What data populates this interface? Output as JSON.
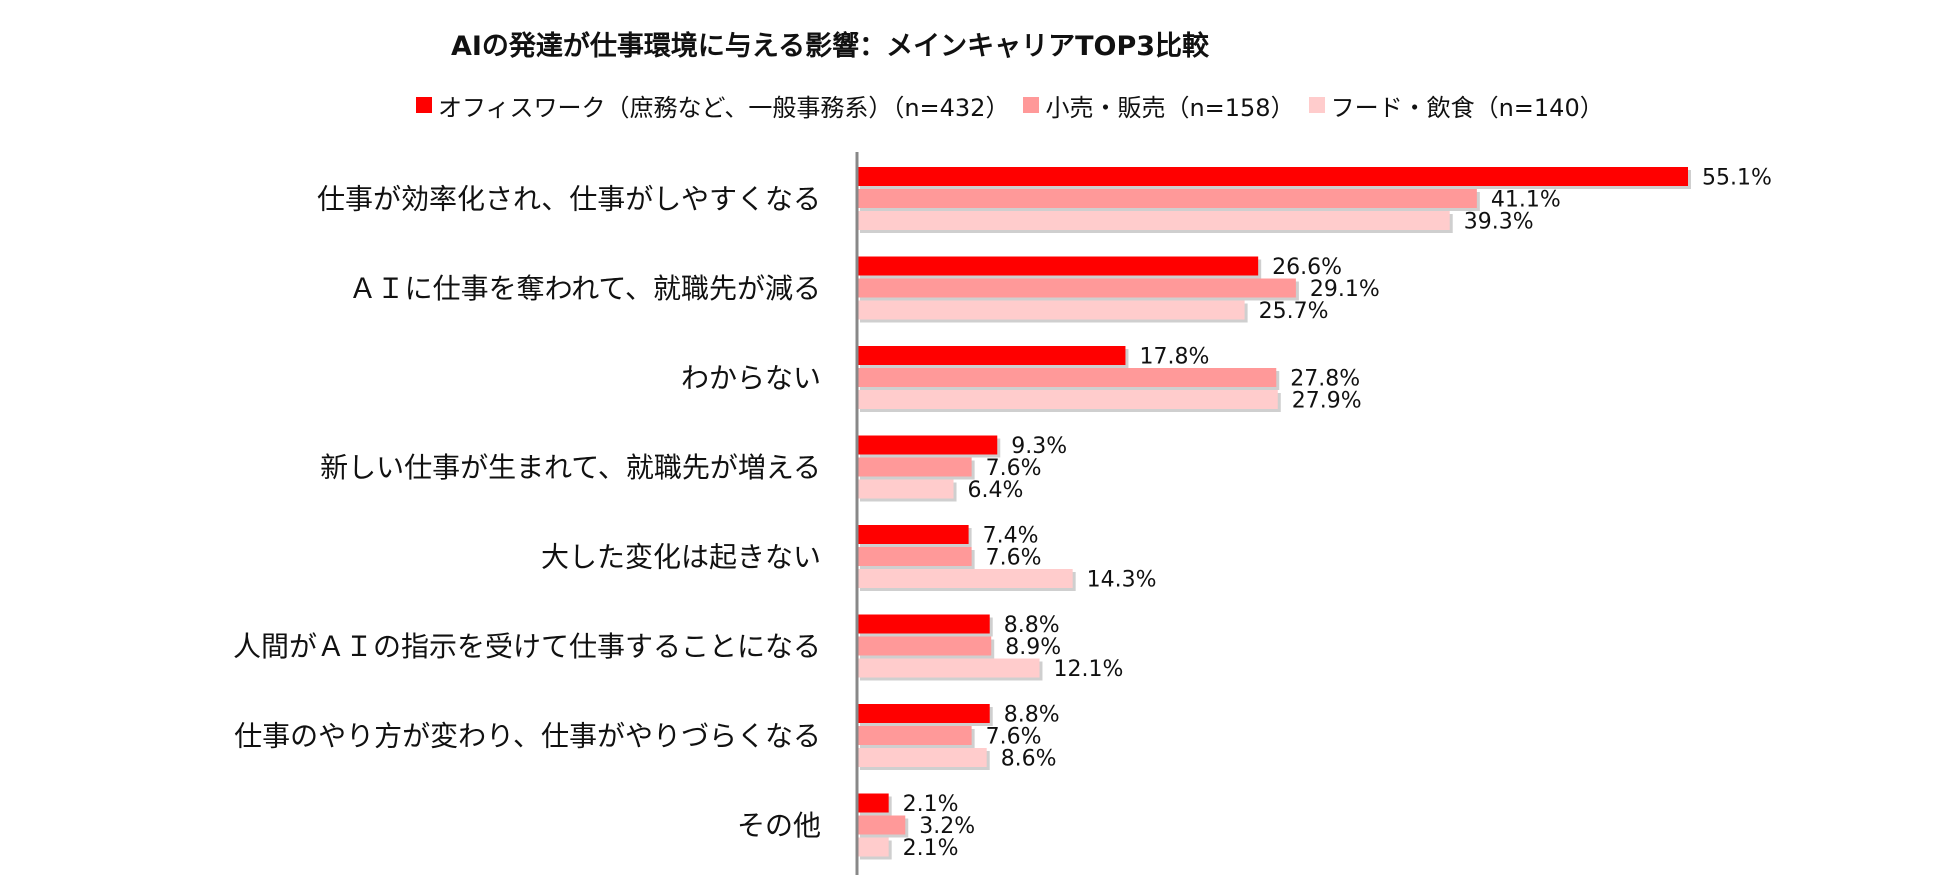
{
  "chart_data": {
    "type": "bar",
    "orientation": "horizontal",
    "title": "AIの発達が仕事環境に与える影響：メインキャリアTOP3比較",
    "legend_position": "top",
    "categories": [
      "仕事が効率化され、仕事がしやすくなる",
      "ＡＩに仕事を奪われて、就職先が減る",
      "わからない",
      "新しい仕事が生まれて、就職先が増える",
      "大した変化は起きない",
      "人間がＡＩの指示を受けて仕事することになる",
      "仕事のやり方が変わり、仕事がやりづらくなる",
      "その他"
    ],
    "series": [
      {
        "name": "オフィスワーク（庶務など、一般事務系）（n=432）",
        "color": "#ff0000",
        "values": [
          55.1,
          26.6,
          17.8,
          9.3,
          7.4,
          8.8,
          8.8,
          2.1
        ],
        "labels": [
          "55.1%",
          "26.6%",
          "17.8%",
          "9.3%",
          "7.4%",
          "8.8%",
          "8.8%",
          "2.1%"
        ]
      },
      {
        "name": "小売・販売（n=158）",
        "color": "#ff9999",
        "values": [
          41.1,
          29.1,
          27.8,
          7.6,
          7.6,
          8.9,
          7.6,
          3.2
        ],
        "labels": [
          "41.1%",
          "29.1%",
          "27.8%",
          "7.6%",
          "7.6%",
          "8.9%",
          "7.6%",
          "3.2%"
        ]
      },
      {
        "name": "フード・飲食（n=140）",
        "color": "#ffcccc",
        "values": [
          39.3,
          25.7,
          27.9,
          6.4,
          14.3,
          12.1,
          8.6,
          2.1
        ],
        "labels": [
          "39.3%",
          "25.7%",
          "27.9%",
          "6.4%",
          "14.3%",
          "12.1%",
          "8.6%",
          "2.1%"
        ]
      }
    ],
    "xlim": [
      0,
      60
    ],
    "grid": false
  }
}
